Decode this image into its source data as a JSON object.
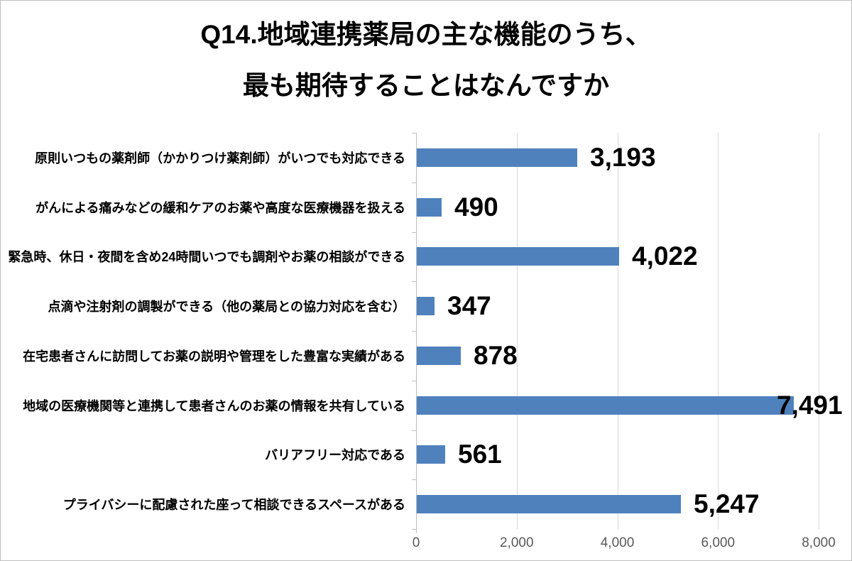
{
  "title": {
    "line1": "Q14.地域連携薬局の主な機能のうち、",
    "line2": "最も期待することはなんですか"
  },
  "chart_data": {
    "type": "bar",
    "orientation": "horizontal",
    "title": "Q14.地域連携薬局の主な機能のうち、最も期待することはなんですか",
    "categories": [
      "原則いつもの薬剤師（かかりつけ薬剤師）がいつでも対応できる",
      "がんによる痛みなどの緩和ケアのお薬や高度な医療機器を扱える",
      "緊急時、休日・夜間を含め24時間いつでも調剤やお薬の相談ができる",
      "点滴や注射剤の調製ができる（他の薬局との協力対応を含む）",
      "在宅患者さんに訪問してお薬の説明や管理をした豊富な実績がある",
      "地域の医療機関等と連携して患者さんのお薬の情報を共有している",
      "バリアフリー対応である",
      "プライバシーに配慮された座って相談できるスペースがある"
    ],
    "values": [
      3193,
      490,
      4022,
      347,
      878,
      7491,
      561,
      5247
    ],
    "value_labels": [
      "3,193",
      "490",
      "4,022",
      "347",
      "878",
      "7,491",
      "561",
      "5,247"
    ],
    "xlabel": "",
    "ylabel": "",
    "xlim": [
      0,
      8000
    ],
    "x_ticks": [
      0,
      2000,
      4000,
      6000,
      8000
    ],
    "x_tick_labels": [
      "0",
      "2,000",
      "4,000",
      "6,000",
      "8,000"
    ],
    "grid": true,
    "legend": false,
    "colors": {
      "bar": "#4F81BD",
      "gridline": "#D9D9D9",
      "axis_line": "#BFBFBF",
      "tick_label": "#595959",
      "value_label": "#000000",
      "category_label": "#000000",
      "title": "#000000",
      "background": "#FFFFFF",
      "border": "#BFBFBF"
    }
  }
}
